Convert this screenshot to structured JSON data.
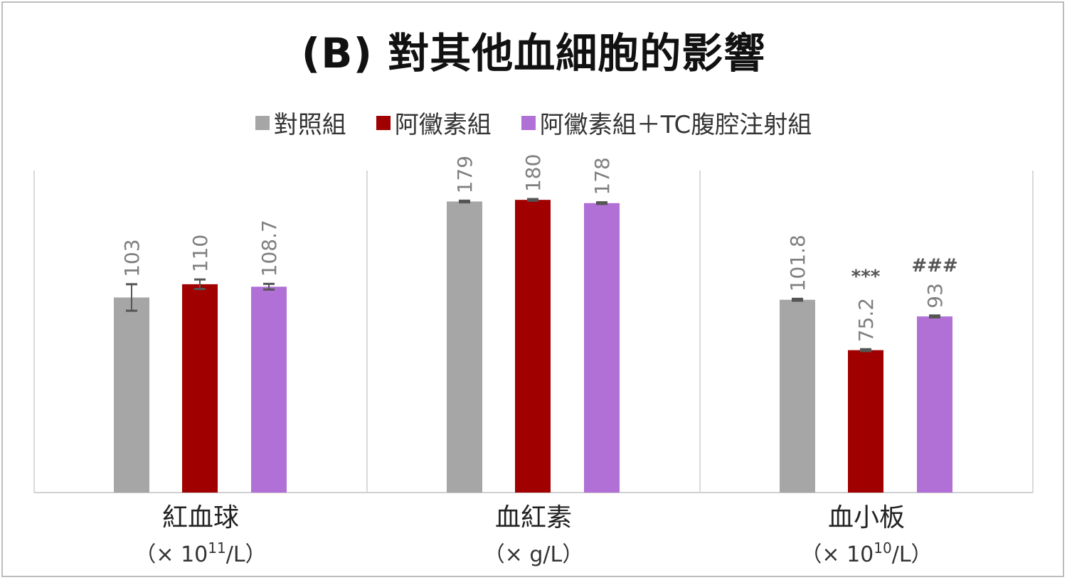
{
  "chart_data": {
    "type": "bar",
    "title": "(B) 對其他血細胞的影響",
    "categories": [
      "紅血球",
      "血紅素",
      "血小板"
    ],
    "units": [
      "（× 10",
      "（× g/L）",
      "（× 10"
    ],
    "unit_superscripts": [
      "11",
      "",
      "10"
    ],
    "unit_suffixes": [
      "/L）",
      "",
      "/L）"
    ],
    "panel_ylim": [
      [
        0,
        170
      ],
      [
        0,
        198
      ],
      [
        0,
        170
      ]
    ],
    "series": [
      {
        "name": "對照組",
        "color": "#a6a6a6",
        "values": [
          103,
          179,
          101.8
        ],
        "errors": [
          7,
          0.5,
          0.5
        ],
        "labels": [
          "103",
          "179",
          "101.8"
        ],
        "sig": [
          "",
          "",
          ""
        ]
      },
      {
        "name": "阿黴素組",
        "color": "#a00000",
        "values": [
          110,
          180,
          75.2
        ],
        "errors": [
          2.5,
          0.5,
          0.5
        ],
        "labels": [
          "110",
          "180",
          "75.2"
        ],
        "sig": [
          "",
          "",
          "***"
        ]
      },
      {
        "name": "阿黴素組＋TC腹腔注射組",
        "color": "#b070d6",
        "values": [
          108.7,
          178,
          93
        ],
        "errors": [
          1.5,
          0.5,
          0.5
        ],
        "labels": [
          "108.7",
          "178",
          "93"
        ],
        "sig": [
          "",
          "",
          "###"
        ]
      }
    ],
    "legend_position": "top"
  }
}
